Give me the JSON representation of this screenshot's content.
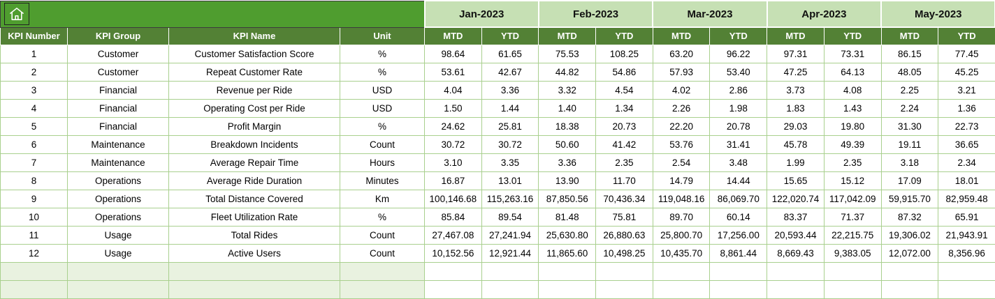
{
  "theme": {
    "home_green": "#4F9D2F",
    "dark_green": "#538135",
    "light_green": "#C6E0B4",
    "grid_green": "#A9D08E",
    "tint_green": "#E9F2E0"
  },
  "icons": {
    "home": "home-icon"
  },
  "table": {
    "fixed_headers": [
      "KPI Number",
      "KPI Group",
      "KPI Name",
      "Unit"
    ],
    "months": [
      "Jan-2023",
      "Feb-2023",
      "Mar-2023",
      "Apr-2023",
      "May-2023"
    ],
    "sub_headers": [
      "MTD",
      "YTD"
    ],
    "rows": [
      {
        "kpi_number": "1",
        "kpi_group": "Customer",
        "kpi_name": "Customer Satisfaction Score",
        "unit": "%",
        "values": [
          "98.64",
          "61.65",
          "75.53",
          "108.25",
          "63.20",
          "96.22",
          "97.31",
          "73.31",
          "86.15",
          "77.45"
        ]
      },
      {
        "kpi_number": "2",
        "kpi_group": "Customer",
        "kpi_name": "Repeat Customer Rate",
        "unit": "%",
        "values": [
          "53.61",
          "42.67",
          "44.82",
          "54.86",
          "57.93",
          "53.40",
          "47.25",
          "64.13",
          "48.05",
          "45.25"
        ]
      },
      {
        "kpi_number": "3",
        "kpi_group": "Financial",
        "kpi_name": "Revenue per Ride",
        "unit": "USD",
        "values": [
          "4.04",
          "3.36",
          "3.32",
          "4.54",
          "4.02",
          "2.86",
          "3.73",
          "4.08",
          "2.25",
          "3.21"
        ]
      },
      {
        "kpi_number": "4",
        "kpi_group": "Financial",
        "kpi_name": "Operating Cost per Ride",
        "unit": "USD",
        "values": [
          "1.50",
          "1.44",
          "1.40",
          "1.34",
          "2.26",
          "1.98",
          "1.83",
          "1.43",
          "2.24",
          "1.36"
        ]
      },
      {
        "kpi_number": "5",
        "kpi_group": "Financial",
        "kpi_name": "Profit Margin",
        "unit": "%",
        "values": [
          "24.62",
          "25.81",
          "18.38",
          "20.73",
          "22.20",
          "20.78",
          "29.03",
          "19.80",
          "31.30",
          "22.73"
        ]
      },
      {
        "kpi_number": "6",
        "kpi_group": "Maintenance",
        "kpi_name": "Breakdown Incidents",
        "unit": "Count",
        "values": [
          "30.72",
          "30.72",
          "50.60",
          "41.42",
          "53.76",
          "31.41",
          "45.78",
          "49.39",
          "19.11",
          "36.65"
        ]
      },
      {
        "kpi_number": "7",
        "kpi_group": "Maintenance",
        "kpi_name": "Average Repair Time",
        "unit": "Hours",
        "values": [
          "3.10",
          "3.35",
          "3.36",
          "2.35",
          "2.54",
          "3.48",
          "1.99",
          "2.35",
          "3.18",
          "2.34"
        ]
      },
      {
        "kpi_number": "8",
        "kpi_group": "Operations",
        "kpi_name": "Average Ride Duration",
        "unit": "Minutes",
        "values": [
          "16.87",
          "13.01",
          "13.90",
          "11.70",
          "14.79",
          "14.44",
          "15.65",
          "15.12",
          "17.09",
          "18.01"
        ]
      },
      {
        "kpi_number": "9",
        "kpi_group": "Operations",
        "kpi_name": "Total Distance Covered",
        "unit": "Km",
        "values": [
          "100,146.68",
          "115,263.16",
          "87,850.56",
          "70,436.34",
          "119,048.16",
          "86,069.70",
          "122,020.74",
          "117,042.09",
          "59,915.70",
          "82,959.48"
        ]
      },
      {
        "kpi_number": "10",
        "kpi_group": "Operations",
        "kpi_name": "Fleet Utilization Rate",
        "unit": "%",
        "values": [
          "85.84",
          "89.54",
          "81.48",
          "75.81",
          "89.70",
          "60.14",
          "83.37",
          "71.37",
          "87.32",
          "65.91"
        ]
      },
      {
        "kpi_number": "11",
        "kpi_group": "Usage",
        "kpi_name": "Total Rides",
        "unit": "Count",
        "values": [
          "27,467.08",
          "27,241.94",
          "25,630.80",
          "26,880.63",
          "25,800.70",
          "17,256.00",
          "20,593.44",
          "22,215.75",
          "19,306.02",
          "21,943.91"
        ]
      },
      {
        "kpi_number": "12",
        "kpi_group": "Usage",
        "kpi_name": "Active Users",
        "unit": "Count",
        "values": [
          "10,152.56",
          "12,921.44",
          "11,865.60",
          "10,498.25",
          "10,435.70",
          "8,861.44",
          "8,669.43",
          "9,383.05",
          "12,072.00",
          "8,356.96"
        ]
      }
    ],
    "empty_rows": 2
  }
}
